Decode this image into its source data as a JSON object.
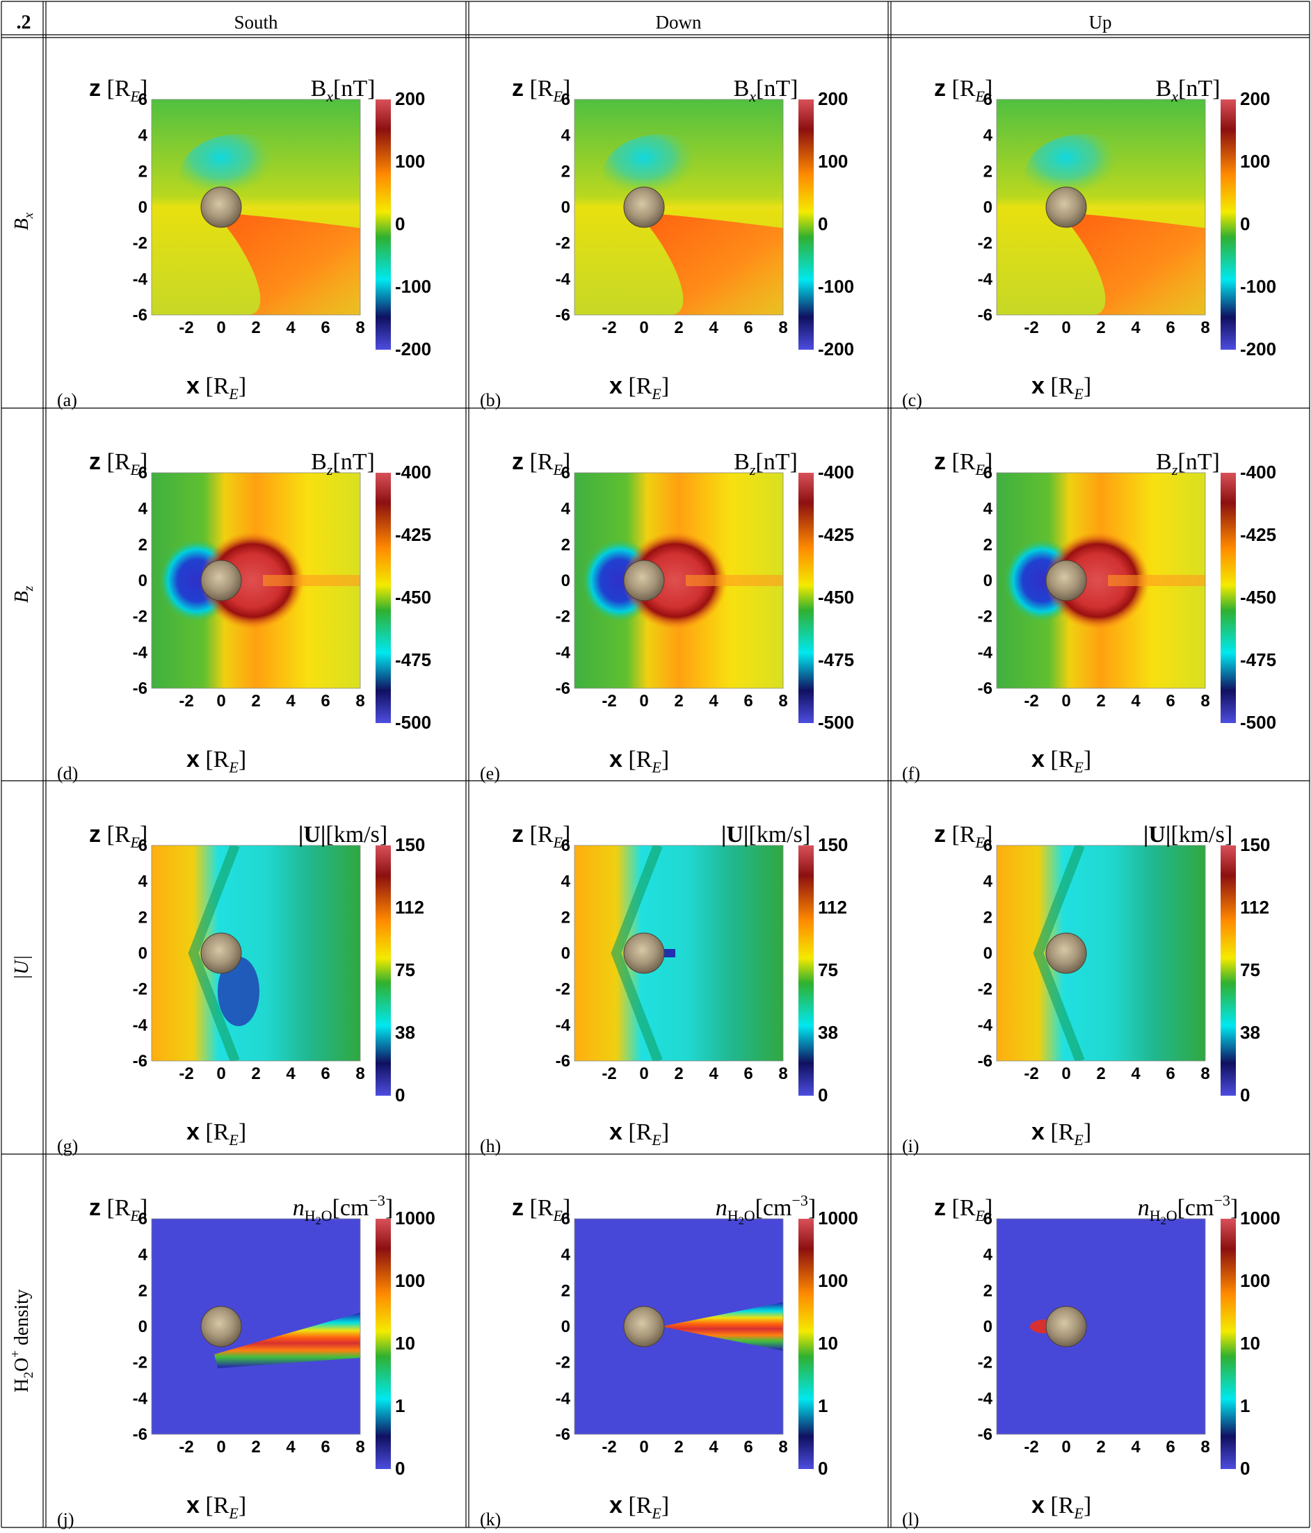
{
  "corner_label": ".2",
  "columns": [
    "South",
    "Down",
    "Up"
  ],
  "rows": [
    {
      "row_label": "B_x",
      "row_label_main": "B",
      "row_label_sub": "x"
    },
    {
      "row_label": "B_z",
      "row_label_main": "B",
      "row_label_sub": "z"
    },
    {
      "row_label": "|U|",
      "row_label_main": "|U|",
      "row_label_sub": ""
    },
    {
      "row_label": "H2O+ density",
      "row_label_main": "H",
      "row_label_sub": "2",
      "row_label_rest": "O",
      "row_label_sup": "+",
      "row_label_tail": " density"
    }
  ],
  "axis_labels": {
    "z_bold": "z",
    "z_unit": "[R",
    "z_unit_sub": "E",
    "z_close": "]",
    "x_bold": "x"
  },
  "chart_data": [
    {
      "panel": "(a)",
      "type": "heatmap",
      "column": "South",
      "quantity": "Bx",
      "title": "Bx[nT]",
      "title_main": "B",
      "title_sub": "x",
      "title_rest": "[nT]",
      "xlabel": "x [RE]",
      "ylabel": "z [RE]",
      "xlim": [
        -4,
        8
      ],
      "ylim": [
        -6,
        6
      ],
      "x_ticks": [
        -2,
        0,
        2,
        4,
        6,
        8
      ],
      "y_ticks": [
        6,
        4,
        2,
        0,
        -2,
        -4,
        -6
      ],
      "colorbar": {
        "range": [
          -200,
          200
        ],
        "ticks": [
          "200",
          "100",
          "0",
          "-100",
          "-200"
        ],
        "scale": "linear"
      }
    },
    {
      "panel": "(b)",
      "type": "heatmap",
      "column": "Down",
      "quantity": "Bx",
      "title": "Bx[nT]",
      "title_main": "B",
      "title_sub": "x",
      "title_rest": "[nT]",
      "xlabel": "x [RE]",
      "ylabel": "z [RE]",
      "xlim": [
        -4,
        8
      ],
      "ylim": [
        -6,
        6
      ],
      "x_ticks": [
        -2,
        0,
        2,
        4,
        6,
        8
      ],
      "y_ticks": [
        6,
        4,
        2,
        0,
        -2,
        -4,
        -6
      ],
      "colorbar": {
        "range": [
          -200,
          200
        ],
        "ticks": [
          "200",
          "100",
          "0",
          "-100",
          "-200"
        ],
        "scale": "linear"
      }
    },
    {
      "panel": "(c)",
      "type": "heatmap",
      "column": "Up",
      "quantity": "Bx",
      "title": "Bx[nT]",
      "title_main": "B",
      "title_sub": "x",
      "title_rest": "[nT]",
      "xlabel": "x [RE]",
      "ylabel": "z [RE]",
      "xlim": [
        -4,
        8
      ],
      "ylim": [
        -6,
        6
      ],
      "x_ticks": [
        -2,
        0,
        2,
        4,
        6,
        8
      ],
      "y_ticks": [
        6,
        4,
        2,
        0,
        -2,
        -4,
        -6
      ],
      "colorbar": {
        "range": [
          -200,
          200
        ],
        "ticks": [
          "200",
          "100",
          "0",
          "-100",
          "-200"
        ],
        "scale": "linear"
      }
    },
    {
      "panel": "(d)",
      "type": "heatmap",
      "column": "South",
      "quantity": "Bz",
      "title": "Bz[nT]",
      "title_main": "B",
      "title_sub": "z",
      "title_rest": "[nT]",
      "xlabel": "x [RE]",
      "ylabel": "z [RE]",
      "xlim": [
        -4,
        8
      ],
      "ylim": [
        -6,
        6
      ],
      "x_ticks": [
        -2,
        0,
        2,
        4,
        6,
        8
      ],
      "y_ticks": [
        6,
        4,
        2,
        0,
        -2,
        -4,
        -6
      ],
      "colorbar": {
        "range": [
          -500,
          -400
        ],
        "ticks": [
          "-400",
          "-425",
          "-450",
          "-475",
          "-500"
        ],
        "scale": "linear"
      }
    },
    {
      "panel": "(e)",
      "type": "heatmap",
      "column": "Down",
      "quantity": "Bz",
      "title": "Bz[nT]",
      "title_main": "B",
      "title_sub": "z",
      "title_rest": "[nT]",
      "xlabel": "x [RE]",
      "ylabel": "z [RE]",
      "xlim": [
        -4,
        8
      ],
      "ylim": [
        -6,
        6
      ],
      "x_ticks": [
        -2,
        0,
        2,
        4,
        6,
        8
      ],
      "y_ticks": [
        6,
        4,
        2,
        0,
        -2,
        -4,
        -6
      ],
      "colorbar": {
        "range": [
          -500,
          -400
        ],
        "ticks": [
          "-400",
          "-425",
          "-450",
          "-475",
          "-500"
        ],
        "scale": "linear"
      }
    },
    {
      "panel": "(f)",
      "type": "heatmap",
      "column": "Up",
      "quantity": "Bz",
      "title": "Bz[nT]",
      "title_main": "B",
      "title_sub": "z",
      "title_rest": "[nT]",
      "xlabel": "x [RE]",
      "ylabel": "z [RE]",
      "xlim": [
        -4,
        8
      ],
      "ylim": [
        -6,
        6
      ],
      "x_ticks": [
        -2,
        0,
        2,
        4,
        6,
        8
      ],
      "y_ticks": [
        6,
        4,
        2,
        0,
        -2,
        -4,
        -6
      ],
      "colorbar": {
        "range": [
          -500,
          -400
        ],
        "ticks": [
          "-400",
          "-425",
          "-450",
          "-475",
          "-500"
        ],
        "scale": "linear"
      }
    },
    {
      "panel": "(g)",
      "type": "heatmap",
      "column": "South",
      "quantity": "U",
      "title": "|U|[km/s]",
      "title_main": "|U|",
      "title_sub": "",
      "title_rest": "[km/s]",
      "xlabel": "x [RE]",
      "ylabel": "z [RE]",
      "xlim": [
        -4,
        8
      ],
      "ylim": [
        -6,
        6
      ],
      "x_ticks": [
        -2,
        0,
        2,
        4,
        6,
        8
      ],
      "y_ticks": [
        6,
        4,
        2,
        0,
        -2,
        -4,
        -6
      ],
      "colorbar": {
        "range": [
          0,
          150
        ],
        "ticks": [
          "150",
          "112",
          "75",
          "38",
          "0"
        ],
        "scale": "linear"
      }
    },
    {
      "panel": "(h)",
      "type": "heatmap",
      "column": "Down",
      "quantity": "U",
      "title": "|U|[km/s]",
      "title_main": "|U|",
      "title_sub": "",
      "title_rest": "[km/s]",
      "xlabel": "x [RE]",
      "ylabel": "z [RE]",
      "xlim": [
        -4,
        8
      ],
      "ylim": [
        -6,
        6
      ],
      "x_ticks": [
        -2,
        0,
        2,
        4,
        6,
        8
      ],
      "y_ticks": [
        6,
        4,
        2,
        0,
        -2,
        -4,
        -6
      ],
      "colorbar": {
        "range": [
          0,
          150
        ],
        "ticks": [
          "150",
          "112",
          "75",
          "38",
          "0"
        ],
        "scale": "linear"
      }
    },
    {
      "panel": "(i)",
      "type": "heatmap",
      "column": "Up",
      "quantity": "U",
      "title": "|U|[km/s]",
      "title_main": "|U|",
      "title_sub": "",
      "title_rest": "[km/s]",
      "xlabel": "x [RE]",
      "ylabel": "z [RE]",
      "xlim": [
        -4,
        8
      ],
      "ylim": [
        -6,
        6
      ],
      "x_ticks": [
        -2,
        0,
        2,
        4,
        6,
        8
      ],
      "y_ticks": [
        6,
        4,
        2,
        0,
        -2,
        -4,
        -6
      ],
      "colorbar": {
        "range": [
          0,
          150
        ],
        "ticks": [
          "150",
          "112",
          "75",
          "38",
          "0"
        ],
        "scale": "linear"
      }
    },
    {
      "panel": "(j)",
      "type": "heatmap",
      "column": "South",
      "quantity": "nH2O",
      "title": "nH2O[cm-3]",
      "title_main": "n",
      "title_sub": "H",
      "title_sub2": "2",
      "title_sub3": "O",
      "title_rest": "[cm",
      "title_sup": "−3",
      "title_close": "]",
      "xlabel": "x [RE]",
      "ylabel": "z [RE]",
      "xlim": [
        -4,
        8
      ],
      "ylim": [
        -6,
        6
      ],
      "x_ticks": [
        -2,
        0,
        2,
        4,
        6,
        8
      ],
      "y_ticks": [
        6,
        4,
        2,
        0,
        -2,
        -4,
        -6
      ],
      "colorbar": {
        "range": [
          0,
          1000
        ],
        "ticks": [
          "1000",
          "100",
          "10",
          "1",
          "0"
        ],
        "scale": "log"
      }
    },
    {
      "panel": "(k)",
      "type": "heatmap",
      "column": "Down",
      "quantity": "nH2O",
      "title": "nH2O[cm-3]",
      "title_main": "n",
      "title_sub": "H",
      "title_sub2": "2",
      "title_sub3": "O",
      "title_rest": "[cm",
      "title_sup": "−3",
      "title_close": "]",
      "xlabel": "x [RE]",
      "ylabel": "z [RE]",
      "xlim": [
        -4,
        8
      ],
      "ylim": [
        -6,
        6
      ],
      "x_ticks": [
        -2,
        0,
        2,
        4,
        6,
        8
      ],
      "y_ticks": [
        6,
        4,
        2,
        0,
        -2,
        -4,
        -6
      ],
      "colorbar": {
        "range": [
          0,
          1000
        ],
        "ticks": [
          "1000",
          "100",
          "10",
          "1",
          "0"
        ],
        "scale": "log"
      }
    },
    {
      "panel": "(l)",
      "type": "heatmap",
      "column": "Up",
      "quantity": "nH2O",
      "title": "nH2O[cm-3]",
      "title_main": "n",
      "title_sub": "H",
      "title_sub2": "2",
      "title_sub3": "O",
      "title_rest": "[cm",
      "title_sup": "−3",
      "title_close": "]",
      "xlabel": "x [RE]",
      "ylabel": "z [RE]",
      "xlim": [
        -4,
        8
      ],
      "ylim": [
        -6,
        6
      ],
      "x_ticks": [
        -2,
        0,
        2,
        4,
        6,
        8
      ],
      "y_ticks": [
        6,
        4,
        2,
        0,
        -2,
        -4,
        -6
      ],
      "colorbar": {
        "range": [
          0,
          1000
        ],
        "ticks": [
          "1000",
          "100",
          "10",
          "1",
          "0"
        ],
        "scale": "log"
      }
    }
  ]
}
